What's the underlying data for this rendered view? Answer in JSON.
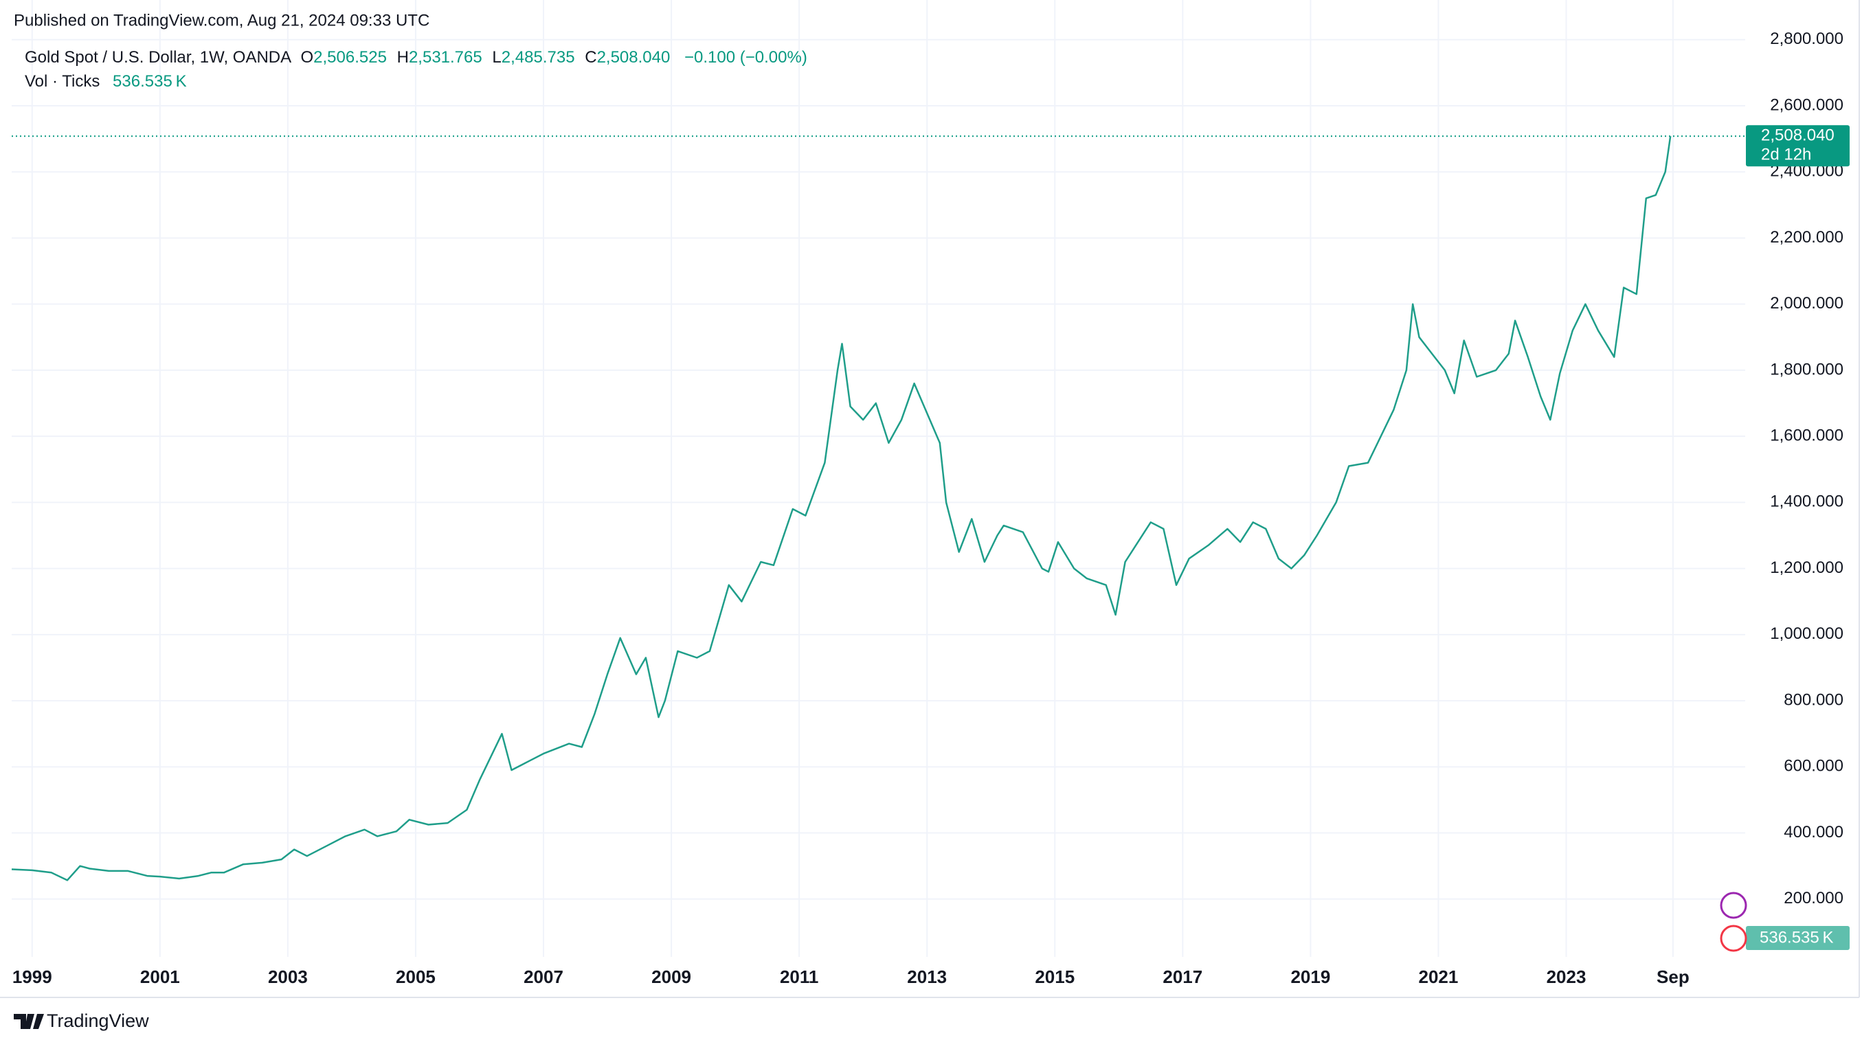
{
  "chart_data": {
    "type": "line",
    "published": "Published on TradingView.com, Aug 21, 2024 09:33 UTC",
    "brand": "TradingView",
    "legend": {
      "symbol": "Gold Spot / U.S. Dollar, 1W, OANDA",
      "open_label": "O",
      "open": "2,506.525",
      "high_label": "H",
      "high": "2,531.765",
      "low_label": "L",
      "low": "2,485.735",
      "close_label": "C",
      "close": "2,508.040",
      "change": "−0.100 (−0.00%)",
      "volume_label": "Vol · Ticks",
      "volume": "536.535 K"
    },
    "last_price": {
      "value": 2508.04,
      "label": "2,508.040",
      "countdown": "2d 12h"
    },
    "volume_tag": "536.535 K",
    "x": [
      1998.68,
      1999.0,
      1999.3,
      1999.55,
      1999.75,
      1999.9,
      2000.2,
      2000.5,
      2000.8,
      2001.0,
      2001.3,
      2001.6,
      2001.8,
      2002.0,
      2002.3,
      2002.6,
      2002.9,
      2003.1,
      2003.3,
      2003.6,
      2003.9,
      2004.2,
      2004.4,
      2004.7,
      2004.9,
      2005.2,
      2005.5,
      2005.8,
      2006.0,
      2006.35,
      2006.5,
      2006.8,
      2007.0,
      2007.4,
      2007.6,
      2007.8,
      2008.0,
      2008.2,
      2008.45,
      2008.6,
      2008.8,
      2008.9,
      2009.1,
      2009.4,
      2009.6,
      2009.9,
      2010.1,
      2010.4,
      2010.6,
      2010.9,
      2011.1,
      2011.4,
      2011.6,
      2011.67,
      2011.8,
      2012.0,
      2012.2,
      2012.4,
      2012.6,
      2012.8,
      2013.0,
      2013.2,
      2013.3,
      2013.5,
      2013.7,
      2013.9,
      2014.1,
      2014.2,
      2014.5,
      2014.8,
      2014.9,
      2015.05,
      2015.3,
      2015.5,
      2015.8,
      2015.95,
      2016.1,
      2016.5,
      2016.7,
      2016.9,
      2017.1,
      2017.4,
      2017.7,
      2017.9,
      2018.1,
      2018.3,
      2018.5,
      2018.7,
      2018.9,
      2019.1,
      2019.4,
      2019.6,
      2019.9,
      2020.1,
      2020.3,
      2020.5,
      2020.6,
      2020.7,
      2020.9,
      2021.1,
      2021.25,
      2021.4,
      2021.6,
      2021.9,
      2022.1,
      2022.2,
      2022.4,
      2022.6,
      2022.75,
      2022.9,
      2023.1,
      2023.3,
      2023.5,
      2023.75,
      2023.9,
      2024.1,
      2024.25,
      2024.4,
      2024.55,
      2024.63
    ],
    "series": [
      {
        "name": "Gold Spot / U.S. Dollar",
        "color": "#1f9e8a",
        "values": [
          290,
          287,
          280,
          257,
          300,
          292,
          285,
          285,
          270,
          268,
          262,
          270,
          280,
          280,
          305,
          310,
          320,
          350,
          330,
          360,
          390,
          410,
          390,
          405,
          440,
          425,
          430,
          470,
          560,
          700,
          590,
          620,
          640,
          670,
          660,
          760,
          880,
          990,
          880,
          930,
          750,
          800,
          950,
          930,
          950,
          1150,
          1100,
          1220,
          1210,
          1380,
          1360,
          1520,
          1800,
          1880,
          1690,
          1650,
          1700,
          1580,
          1650,
          1760,
          1670,
          1580,
          1400,
          1250,
          1350,
          1220,
          1300,
          1330,
          1310,
          1200,
          1190,
          1280,
          1200,
          1170,
          1150,
          1060,
          1220,
          1340,
          1320,
          1150,
          1230,
          1270,
          1320,
          1280,
          1340,
          1320,
          1230,
          1200,
          1240,
          1300,
          1400,
          1510,
          1520,
          1600,
          1680,
          1800,
          2000,
          1900,
          1850,
          1800,
          1730,
          1890,
          1780,
          1800,
          1850,
          1950,
          1840,
          1720,
          1650,
          1790,
          1920,
          2000,
          1920,
          1840,
          2050,
          2030,
          2320,
          2330,
          2400,
          2508
        ]
      }
    ],
    "xlim": [
      1998.68,
      2025.8
    ],
    "ylim": [
      25,
      2920
    ],
    "xticks": [
      1999,
      2001,
      2003,
      2005,
      2007,
      2009,
      2011,
      2013,
      2015,
      2017,
      2019,
      2021,
      2023,
      {
        "value": 2024.67,
        "label": "Sep"
      }
    ],
    "yticks": [
      {
        "value": 200,
        "label": "200.000"
      },
      {
        "value": 400,
        "label": "400.000"
      },
      {
        "value": 600,
        "label": "600.000"
      },
      {
        "value": 800,
        "label": "800.000"
      },
      {
        "value": 1000,
        "label": "1,000.000"
      },
      {
        "value": 1200,
        "label": "1,200.000"
      },
      {
        "value": 1400,
        "label": "1,400.000"
      },
      {
        "value": 1600,
        "label": "1,600.000"
      },
      {
        "value": 1800,
        "label": "1,800.000"
      },
      {
        "value": 2000,
        "label": "2,000.000"
      },
      {
        "value": 2200,
        "label": "2,200.000"
      },
      {
        "value": 2400,
        "label": "2,400.000"
      },
      {
        "value": 2600,
        "label": "2,600.000"
      },
      {
        "value": 2800,
        "label": "2,800.000"
      }
    ],
    "grid": true
  }
}
